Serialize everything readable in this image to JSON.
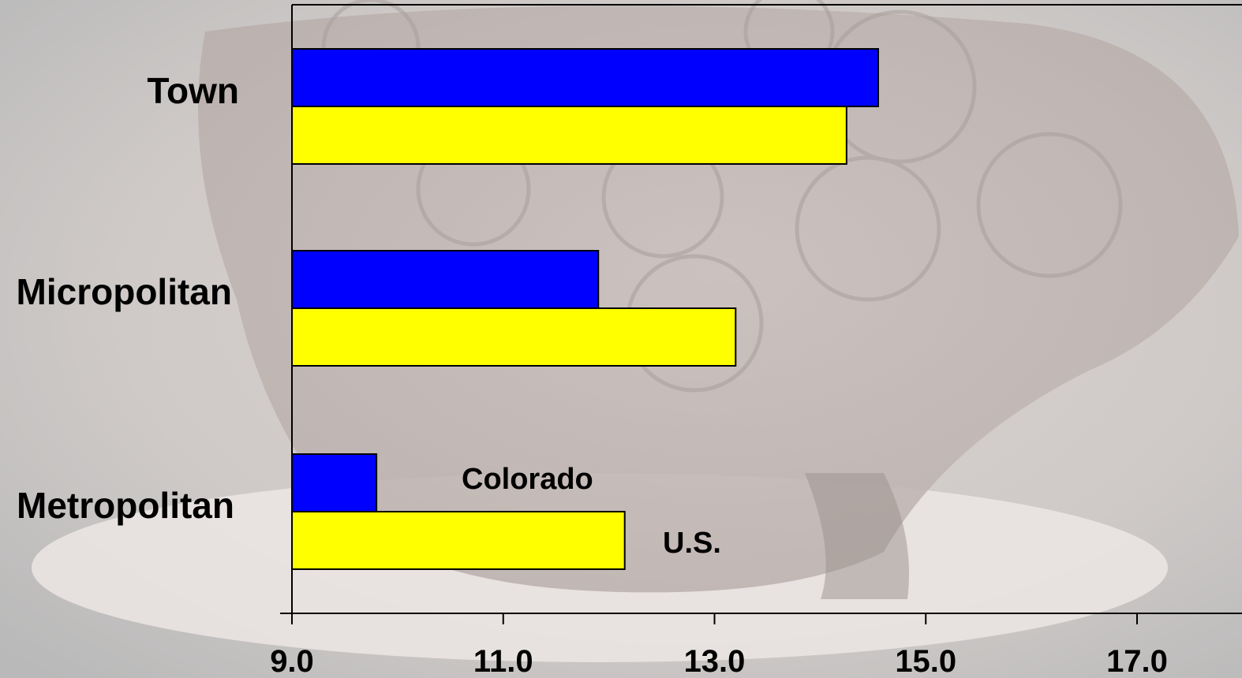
{
  "chart_data": {
    "type": "bar",
    "orientation": "horizontal",
    "categories": [
      "Town",
      "Micropolitan",
      "Metropolitan"
    ],
    "series": [
      {
        "name": "Colorado",
        "values": [
          14.55,
          11.9,
          9.8
        ],
        "color": "#0000FF"
      },
      {
        "name": "U.S.",
        "values": [
          14.25,
          13.2,
          12.15
        ],
        "color": "#FFFF00"
      }
    ],
    "xlim": [
      9.0,
      17.0
    ],
    "xticks": [
      "9.0",
      "11.0",
      "13.0",
      "15.0",
      "17.0"
    ],
    "grid": false,
    "legend_placement": "inline"
  }
}
